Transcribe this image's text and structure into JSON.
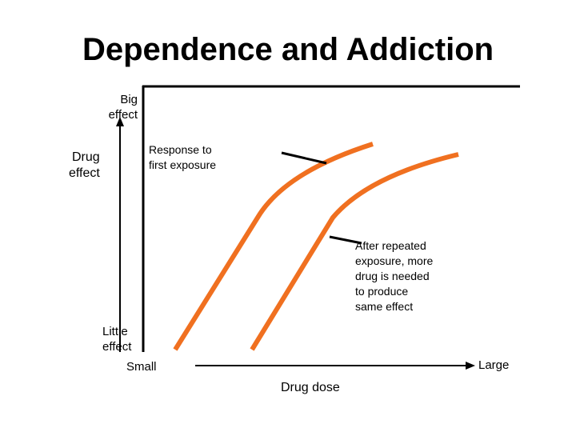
{
  "title": "Dependence and Addiction",
  "y_axis": {
    "label_lines": [
      "Drug",
      "effect"
    ],
    "top_label_lines": [
      "Big",
      "effect"
    ],
    "bottom_label_lines": [
      "Little",
      "effect"
    ]
  },
  "x_axis": {
    "label": "Drug dose",
    "left_label": "Small",
    "right_label": "Large"
  },
  "curves": [
    {
      "name": "first-exposure",
      "color": "#f07020"
    },
    {
      "name": "repeated-exposure",
      "color": "#f07020"
    }
  ],
  "annotations": {
    "first_exposure_lines": [
      "Response to",
      "first exposure"
    ],
    "repeated_exposure_lines": [
      "After repeated",
      "exposure, more",
      "drug is needed",
      "to produce",
      "same effect"
    ]
  }
}
